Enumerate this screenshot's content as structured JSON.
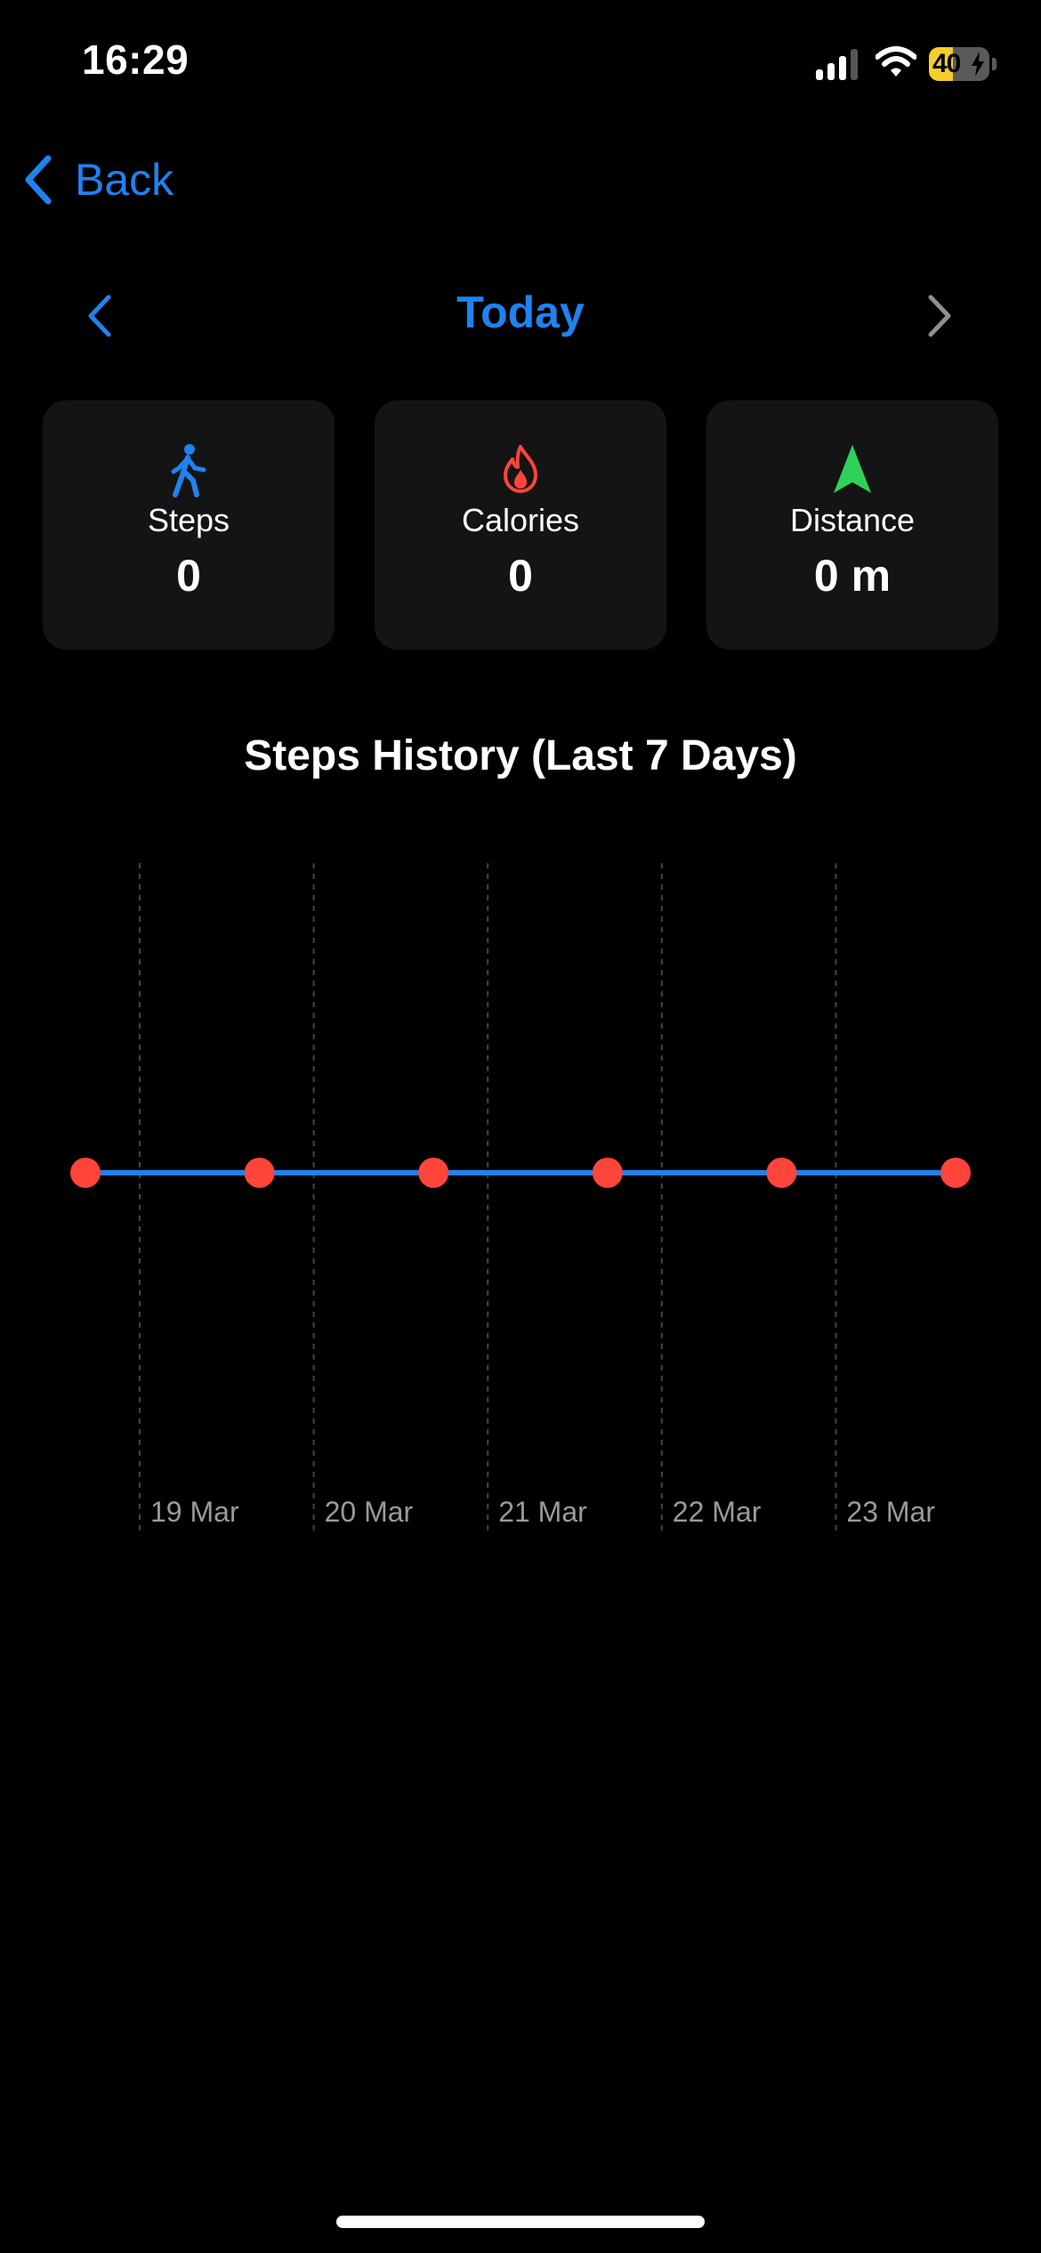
{
  "status_bar": {
    "time": "16:29",
    "battery_percent": "40",
    "battery_level": 0.4,
    "signal_bars_active": 3,
    "charging": true
  },
  "nav": {
    "back_label": "Back",
    "date_title": "Today",
    "prev_icon": "chevron-left-icon",
    "next_icon": "chevron-right-icon"
  },
  "stats": [
    {
      "label": "Steps",
      "value": "0",
      "icon": "walking-figure-icon",
      "color": "#1f82f0"
    },
    {
      "label": "Calories",
      "value": "0",
      "icon": "flame-icon",
      "color": "#ff453a"
    },
    {
      "label": "Distance",
      "value": "0 m",
      "icon": "location-arrow-icon",
      "color": "#30d158"
    }
  ],
  "chart_title": "Steps History (Last 7 Days)",
  "chart_data": {
    "type": "line",
    "title": "Steps History (Last 7 Days)",
    "x": [
      "",
      "19 Mar",
      "20 Mar",
      "21 Mar",
      "22 Mar",
      "23 Mar"
    ],
    "tick_labels": [
      "19 Mar",
      "20 Mar",
      "21 Mar",
      "22 Mar",
      "23 Mar"
    ],
    "series": [
      {
        "values": [
          0,
          0,
          0,
          0,
          0,
          0
        ],
        "line_color": "#1f82f0",
        "point_color": "#ff453a"
      }
    ],
    "xlabel": "",
    "ylabel": "",
    "grid": "vertical dashed"
  }
}
